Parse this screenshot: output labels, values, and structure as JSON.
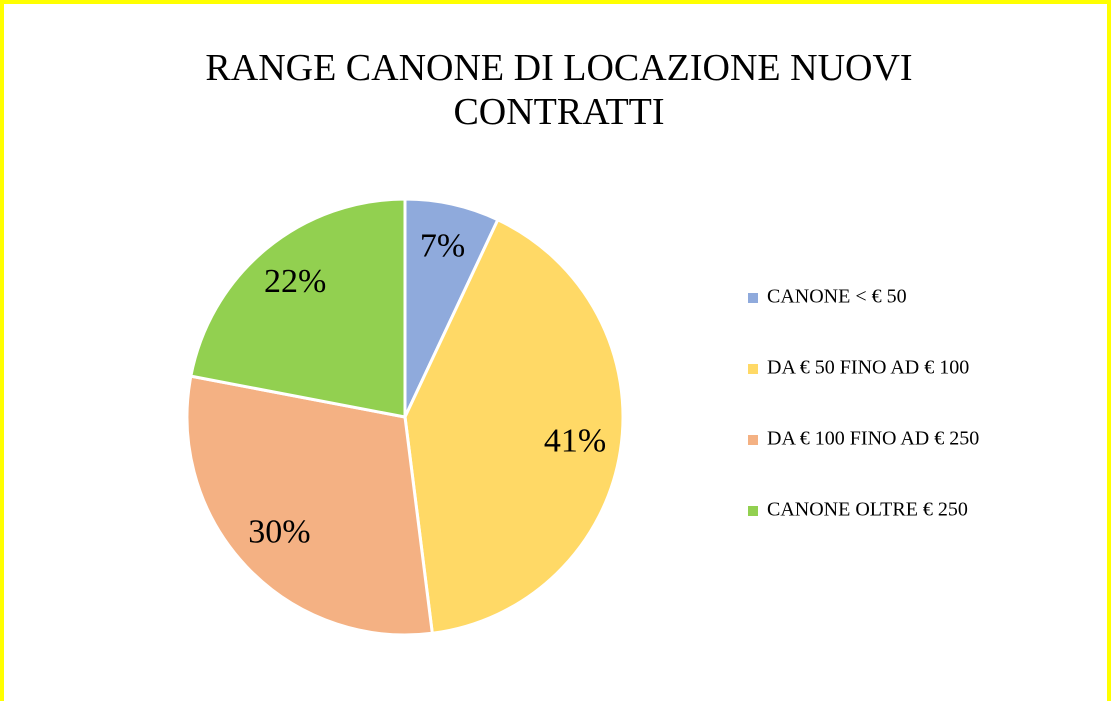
{
  "chart_data": {
    "type": "pie",
    "title": "RANGE CANONE DI LOCAZIONE NUOVI CONTRATTI",
    "categories": [
      "CANONE < € 50",
      "DA € 50 FINO AD € 100",
      "DA € 100 FINO AD € 250",
      "CANONE OLTRE € 250"
    ],
    "values": [
      7,
      41,
      30,
      22
    ],
    "value_labels": [
      "7%",
      "41%",
      "30%",
      "22%"
    ],
    "colors": [
      "#8FAADC",
      "#FFD966",
      "#F4B183",
      "#92D050"
    ],
    "legend": "right"
  }
}
